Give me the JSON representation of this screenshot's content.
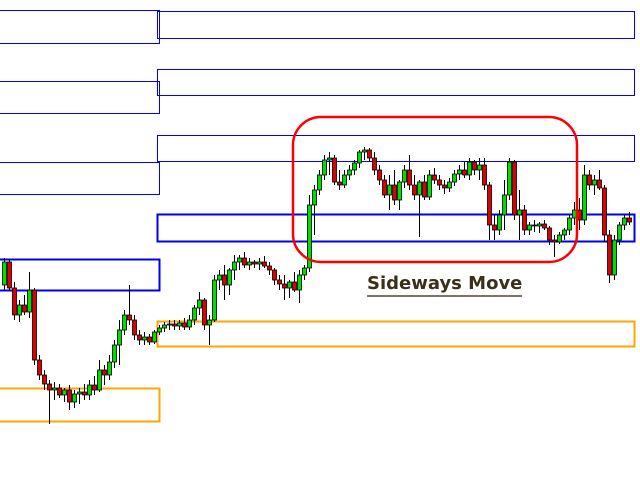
{
  "chart_data": {
    "type": "candlestick",
    "title": "",
    "xlabel": "",
    "ylabel": "",
    "ylim": [
      0,
      480
    ],
    "grid": false,
    "colors": {
      "up": "#00dd00",
      "down": "#dd0000",
      "wick": "#000000",
      "zone_thin": "#0000ff",
      "zone_key": "#0000ee",
      "demand": "#ffa500",
      "highlight": "#ff0000",
      "annotation_text": "#3b2f1a"
    },
    "candles_ohlc": [
      [
        195,
        222,
        190,
        218
      ],
      [
        218,
        220,
        190,
        192
      ],
      [
        192,
        198,
        160,
        165
      ],
      [
        165,
        180,
        158,
        175
      ],
      [
        175,
        185,
        165,
        168
      ],
      [
        168,
        208,
        162,
        190
      ],
      [
        190,
        192,
        115,
        120
      ],
      [
        120,
        125,
        100,
        105
      ],
      [
        105,
        110,
        90,
        96
      ],
      [
        96,
        100,
        56,
        90
      ],
      [
        90,
        98,
        80,
        92
      ],
      [
        92,
        96,
        82,
        85
      ],
      [
        85,
        92,
        78,
        90
      ],
      [
        90,
        95,
        70,
        78
      ],
      [
        78,
        90,
        72,
        86
      ],
      [
        86,
        92,
        76,
        88
      ],
      [
        88,
        96,
        80,
        85
      ],
      [
        85,
        100,
        80,
        95
      ],
      [
        95,
        104,
        85,
        90
      ],
      [
        90,
        120,
        88,
        110
      ],
      [
        110,
        115,
        95,
        105
      ],
      [
        105,
        125,
        100,
        118
      ],
      [
        118,
        140,
        112,
        135
      ],
      [
        135,
        160,
        115,
        150
      ],
      [
        150,
        170,
        145,
        165
      ],
      [
        165,
        195,
        155,
        160
      ],
      [
        160,
        165,
        140,
        145
      ],
      [
        145,
        150,
        135,
        140
      ],
      [
        140,
        148,
        135,
        143
      ],
      [
        143,
        146,
        135,
        138
      ],
      [
        138,
        150,
        136,
        148
      ],
      [
        148,
        155,
        145,
        152
      ],
      [
        152,
        158,
        148,
        155
      ],
      [
        155,
        160,
        150,
        156
      ],
      [
        156,
        160,
        150,
        154
      ],
      [
        154,
        160,
        150,
        157
      ],
      [
        157,
        162,
        150,
        153
      ],
      [
        153,
        165,
        150,
        160
      ],
      [
        160,
        175,
        155,
        172
      ],
      [
        172,
        188,
        165,
        180
      ],
      [
        180,
        182,
        150,
        155
      ],
      [
        155,
        165,
        135,
        160
      ],
      [
        160,
        205,
        158,
        200
      ],
      [
        200,
        210,
        190,
        205
      ],
      [
        205,
        215,
        180,
        195
      ],
      [
        195,
        212,
        185,
        210
      ],
      [
        210,
        225,
        200,
        218
      ],
      [
        218,
        225,
        210,
        222
      ],
      [
        222,
        228,
        212,
        215
      ],
      [
        215,
        222,
        210,
        218
      ],
      [
        218,
        220,
        212,
        216
      ],
      [
        216,
        222,
        210,
        218
      ],
      [
        218,
        224,
        212,
        214
      ],
      [
        214,
        218,
        205,
        210
      ],
      [
        210,
        212,
        195,
        200
      ],
      [
        200,
        205,
        190,
        196
      ],
      [
        196,
        205,
        180,
        192
      ],
      [
        192,
        200,
        182,
        198
      ],
      [
        198,
        208,
        188,
        190
      ],
      [
        190,
        210,
        177,
        205
      ],
      [
        205,
        215,
        200,
        212
      ],
      [
        212,
        285,
        208,
        275
      ],
      [
        275,
        295,
        245,
        290
      ],
      [
        290,
        310,
        285,
        305
      ],
      [
        305,
        325,
        300,
        320
      ],
      [
        320,
        328,
        305,
        322
      ],
      [
        322,
        325,
        295,
        298
      ],
      [
        298,
        310,
        290,
        295
      ],
      [
        295,
        310,
        292,
        305
      ],
      [
        305,
        315,
        300,
        310
      ],
      [
        310,
        320,
        305,
        317
      ],
      [
        317,
        330,
        312,
        328
      ],
      [
        328,
        333,
        320,
        330
      ],
      [
        330,
        332,
        318,
        322
      ],
      [
        322,
        328,
        305,
        310
      ],
      [
        310,
        315,
        295,
        300
      ],
      [
        300,
        305,
        282,
        285
      ],
      [
        285,
        305,
        270,
        295
      ],
      [
        295,
        310,
        275,
        280
      ],
      [
        280,
        300,
        270,
        298
      ],
      [
        298,
        315,
        292,
        310
      ],
      [
        310,
        325,
        290,
        295
      ],
      [
        295,
        305,
        280,
        285
      ],
      [
        285,
        300,
        243,
        298
      ],
      [
        298,
        305,
        280,
        283
      ],
      [
        283,
        310,
        280,
        305
      ],
      [
        305,
        312,
        296,
        300
      ],
      [
        300,
        305,
        290,
        295
      ],
      [
        295,
        300,
        286,
        292
      ],
      [
        292,
        302,
        288,
        298
      ],
      [
        298,
        310,
        294,
        306
      ],
      [
        306,
        315,
        300,
        310
      ],
      [
        310,
        318,
        302,
        305
      ],
      [
        305,
        322,
        300,
        318
      ],
      [
        318,
        320,
        305,
        310
      ],
      [
        310,
        322,
        300,
        315
      ],
      [
        315,
        322,
        290,
        295
      ],
      [
        295,
        298,
        240,
        255
      ],
      [
        255,
        265,
        240,
        250
      ],
      [
        250,
        270,
        245,
        265
      ],
      [
        265,
        300,
        250,
        285
      ],
      [
        285,
        322,
        280,
        318
      ],
      [
        318,
        320,
        260,
        265
      ],
      [
        265,
        290,
        240,
        270
      ],
      [
        270,
        275,
        245,
        250
      ],
      [
        250,
        258,
        245,
        255
      ],
      [
        255,
        260,
        248,
        254
      ],
      [
        254,
        258,
        247,
        256
      ],
      [
        256,
        260,
        250,
        252
      ],
      [
        252,
        254,
        235,
        240
      ],
      [
        240,
        245,
        223,
        238
      ],
      [
        238,
        248,
        236,
        245
      ],
      [
        245,
        252,
        240,
        250
      ],
      [
        250,
        265,
        245,
        262
      ],
      [
        262,
        278,
        255,
        270
      ],
      [
        270,
        282,
        250,
        260
      ],
      [
        260,
        315,
        255,
        305
      ],
      [
        305,
        310,
        290,
        295
      ],
      [
        295,
        305,
        285,
        300
      ],
      [
        300,
        310,
        290,
        292
      ],
      [
        292,
        295,
        238,
        245
      ],
      [
        245,
        250,
        197,
        205
      ],
      [
        205,
        245,
        200,
        240
      ],
      [
        240,
        258,
        235,
        255
      ],
      [
        255,
        265,
        250,
        262
      ],
      [
        262,
        268,
        255,
        258
      ]
    ],
    "zones": [
      {
        "kind": "thin",
        "from_candle": 0,
        "to_candle": 30,
        "price": [
          437,
          470
        ]
      },
      {
        "kind": "thin",
        "from_candle": 0,
        "to_candle": 30,
        "price": [
          367,
          399
        ]
      },
      {
        "kind": "thin",
        "from_candle": 0,
        "to_candle": 30,
        "price": [
          286,
          318
        ]
      },
      {
        "kind": "thin",
        "from_candle": 31,
        "to_candle": 125,
        "price": [
          442,
          469
        ]
      },
      {
        "kind": "thin",
        "from_candle": 31,
        "to_candle": 125,
        "price": [
          385,
          411
        ]
      },
      {
        "kind": "thin",
        "from_candle": 31,
        "to_candle": 125,
        "price": [
          319,
          345
        ]
      },
      {
        "kind": "key",
        "from_candle": 0,
        "to_candle": 30,
        "price": [
          190,
          221
        ]
      },
      {
        "kind": "key",
        "from_candle": 31,
        "to_candle": 125,
        "price": [
          239,
          266
        ]
      },
      {
        "kind": "demand",
        "from_candle": 0,
        "to_candle": 30,
        "price": [
          59,
          92
        ]
      },
      {
        "kind": "demand",
        "from_candle": 31,
        "to_candle": 125,
        "price": [
          134,
          159
        ]
      }
    ],
    "highlight": {
      "from_candle": 57,
      "to_candle": 115,
      "price": [
        218,
        363
      ]
    },
    "annotation": "Sideways Move"
  }
}
